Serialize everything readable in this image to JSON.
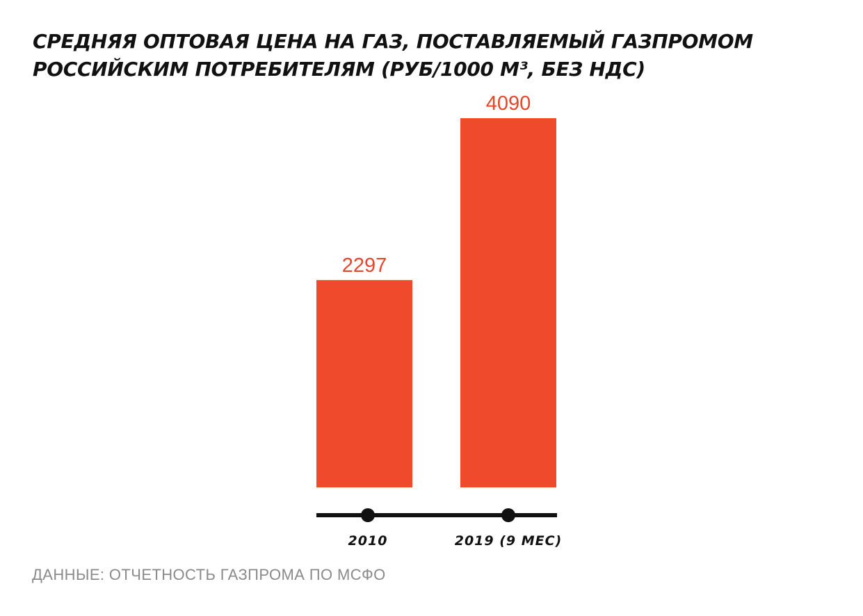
{
  "chart_data": {
    "type": "bar",
    "title_lines": [
      "СРЕДНЯЯ ОПТОВАЯ ЦЕНА НА ГАЗ, ПОСТАВЛЯЕМЫЙ ГАЗПРОМОМ",
      "РОССИЙСКИМ ПОТРЕБИТЕЛЯМ (РУБ/1000 М³, БЕЗ НДС)"
    ],
    "categories": [
      "2010",
      "2019 (9 МЕС)"
    ],
    "values": [
      2297,
      4090
    ],
    "value_labels": [
      "2297",
      "4090"
    ],
    "ylim": [
      0,
      4090
    ],
    "grid": false,
    "colors": {
      "bar": "#f04a2d",
      "value_label": "#e8452a",
      "axis": "#111111",
      "title": "#111111",
      "source": "#8a8a8a"
    }
  },
  "source": "ДАННЫЕ: ОТЧЕТНОСТЬ ГАЗПРОМА ПО МСФО"
}
